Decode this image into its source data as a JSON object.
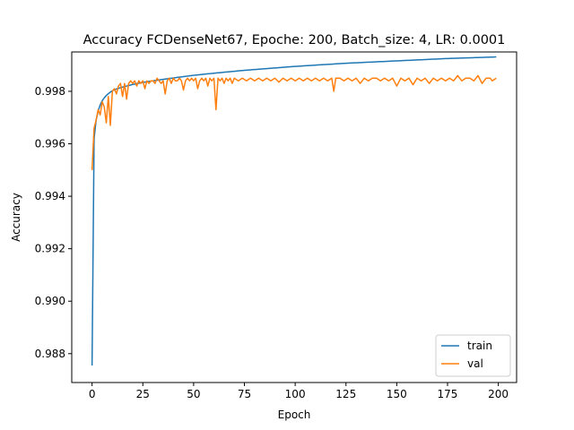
{
  "chart_data": {
    "type": "line",
    "title": "Accuracy FCDenseNet67, Epoche: 200, Batch_size: 4, LR: 0.0001",
    "xlabel": "Epoch",
    "ylabel": "Accuracy",
    "xlim": [
      -10,
      209
    ],
    "ylim": [
      0.9869,
      0.9995
    ],
    "xticks": [
      0,
      25,
      50,
      75,
      100,
      125,
      150,
      175,
      200
    ],
    "yticks": [
      0.988,
      0.99,
      0.992,
      0.994,
      0.996,
      0.998
    ],
    "ytick_labels": [
      "0.988",
      "0.990",
      "0.992",
      "0.994",
      "0.996",
      "0.998"
    ],
    "grid": false,
    "legend_position": "lower-right",
    "series": [
      {
        "name": "train",
        "color": "#1f77b4",
        "model": "train",
        "points": [
          [
            0,
            0.98755
          ],
          [
            1,
            0.9962
          ],
          [
            2,
            0.9969
          ],
          [
            3,
            0.99725
          ],
          [
            4,
            0.99748
          ],
          [
            5,
            0.99764
          ],
          [
            6,
            0.99775
          ],
          [
            7,
            0.99784
          ],
          [
            8,
            0.99791
          ],
          [
            9,
            0.99797
          ],
          [
            10,
            0.99802
          ],
          [
            12,
            0.99809
          ],
          [
            15,
            0.99816
          ],
          [
            20,
            0.99826
          ],
          [
            25,
            0.99834
          ],
          [
            30,
            0.9984
          ],
          [
            40,
            0.99851
          ],
          [
            50,
            0.99861
          ],
          [
            60,
            0.99869
          ],
          [
            75,
            0.9988
          ],
          [
            100,
            0.99895
          ],
          [
            125,
            0.99907
          ],
          [
            150,
            0.99916
          ],
          [
            175,
            0.99925
          ],
          [
            199,
            0.99931
          ]
        ]
      },
      {
        "name": "val",
        "color": "#ff7f0e",
        "model": "val",
        "points": [
          [
            0,
            0.995
          ],
          [
            1,
            0.9966
          ],
          [
            2,
            0.9969
          ],
          [
            3,
            0.9973
          ],
          [
            4,
            0.9971
          ],
          [
            5,
            0.9976
          ],
          [
            6,
            0.9974
          ],
          [
            7,
            0.9968
          ],
          [
            8,
            0.9978
          ],
          [
            9,
            0.9967
          ],
          [
            10,
            0.998
          ],
          [
            11,
            0.9981
          ],
          [
            12,
            0.9979
          ],
          [
            13,
            0.9982
          ],
          [
            14,
            0.9983
          ],
          [
            15,
            0.9978
          ],
          [
            16,
            0.9983
          ],
          [
            17,
            0.9977
          ],
          [
            18,
            0.9983
          ],
          [
            19,
            0.9984
          ],
          [
            20,
            0.9983
          ],
          [
            21,
            0.9984
          ],
          [
            22,
            0.9982
          ],
          [
            23,
            0.9984
          ],
          [
            24,
            0.9983
          ],
          [
            25,
            0.9984
          ],
          [
            26,
            0.9981
          ],
          [
            27,
            0.9984
          ],
          [
            28,
            0.9983
          ],
          [
            29,
            0.9984
          ],
          [
            30,
            0.9984
          ],
          [
            31,
            0.9983
          ],
          [
            32,
            0.9985
          ],
          [
            33,
            0.9984
          ],
          [
            34,
            0.9983
          ],
          [
            35,
            0.9984
          ],
          [
            36,
            0.9979
          ],
          [
            37,
            0.9984
          ],
          [
            38,
            0.9985
          ],
          [
            39,
            0.9983
          ],
          [
            40,
            0.9985
          ],
          [
            41,
            0.9984
          ],
          [
            42,
            0.9984
          ],
          [
            43,
            0.9985
          ],
          [
            44,
            0.9984
          ],
          [
            45,
            0.99805
          ],
          [
            46,
            0.9984
          ],
          [
            47,
            0.9985
          ],
          [
            48,
            0.9984
          ],
          [
            49,
            0.9985
          ],
          [
            50,
            0.9984
          ],
          [
            51,
            0.9985
          ],
          [
            52,
            0.9981
          ],
          [
            53,
            0.9984
          ],
          [
            54,
            0.9985
          ],
          [
            55,
            0.9984
          ],
          [
            56,
            0.9985
          ],
          [
            57,
            0.9982
          ],
          [
            58,
            0.9985
          ],
          [
            59,
            0.9984
          ],
          [
            60,
            0.9985
          ],
          [
            61,
            0.9973
          ],
          [
            62,
            0.9985
          ],
          [
            63,
            0.9984
          ],
          [
            64,
            0.9985
          ],
          [
            65,
            0.9983
          ],
          [
            66,
            0.9985
          ],
          [
            67,
            0.9984
          ],
          [
            68,
            0.9985
          ],
          [
            69,
            0.9983
          ],
          [
            70,
            0.9985
          ],
          [
            72,
            0.9984
          ],
          [
            74,
            0.9985
          ],
          [
            76,
            0.9984
          ],
          [
            78,
            0.9985
          ],
          [
            80,
            0.9984
          ],
          [
            82,
            0.9985
          ],
          [
            84,
            0.9984
          ],
          [
            86,
            0.9985
          ],
          [
            88,
            0.9984
          ],
          [
            90,
            0.9985
          ],
          [
            92,
            0.99835
          ],
          [
            94,
            0.9985
          ],
          [
            96,
            0.9984
          ],
          [
            98,
            0.9985
          ],
          [
            100,
            0.9984
          ],
          [
            102,
            0.9985
          ],
          [
            104,
            0.9984
          ],
          [
            106,
            0.9985
          ],
          [
            108,
            0.9984
          ],
          [
            110,
            0.9985
          ],
          [
            112,
            0.9984
          ],
          [
            114,
            0.9985
          ],
          [
            116,
            0.9984
          ],
          [
            118,
            0.9985
          ],
          [
            119,
            0.998
          ],
          [
            120,
            0.9985
          ],
          [
            122,
            0.9985
          ],
          [
            124,
            0.9984
          ],
          [
            126,
            0.9985
          ],
          [
            128,
            0.9984
          ],
          [
            130,
            0.9985
          ],
          [
            132,
            0.9983
          ],
          [
            134,
            0.9985
          ],
          [
            136,
            0.9984
          ],
          [
            138,
            0.9985
          ],
          [
            140,
            0.9985
          ],
          [
            142,
            0.9984
          ],
          [
            144,
            0.9985
          ],
          [
            146,
            0.9984
          ],
          [
            148,
            0.9985
          ],
          [
            150,
            0.9982
          ],
          [
            152,
            0.9985
          ],
          [
            154,
            0.9984
          ],
          [
            156,
            0.9985
          ],
          [
            158,
            0.99825
          ],
          [
            160,
            0.9985
          ],
          [
            162,
            0.9984
          ],
          [
            164,
            0.9985
          ],
          [
            166,
            0.9983
          ],
          [
            168,
            0.9985
          ],
          [
            170,
            0.9984
          ],
          [
            172,
            0.9985
          ],
          [
            174,
            0.9984
          ],
          [
            176,
            0.9985
          ],
          [
            178,
            0.9984
          ],
          [
            180,
            0.9986
          ],
          [
            182,
            0.9984
          ],
          [
            184,
            0.9985
          ],
          [
            186,
            0.9985
          ],
          [
            188,
            0.9984
          ],
          [
            190,
            0.9986
          ],
          [
            192,
            0.9983
          ],
          [
            194,
            0.9985
          ],
          [
            196,
            0.9985
          ],
          [
            197,
            0.9984
          ],
          [
            199,
            0.9985
          ]
        ]
      }
    ]
  }
}
